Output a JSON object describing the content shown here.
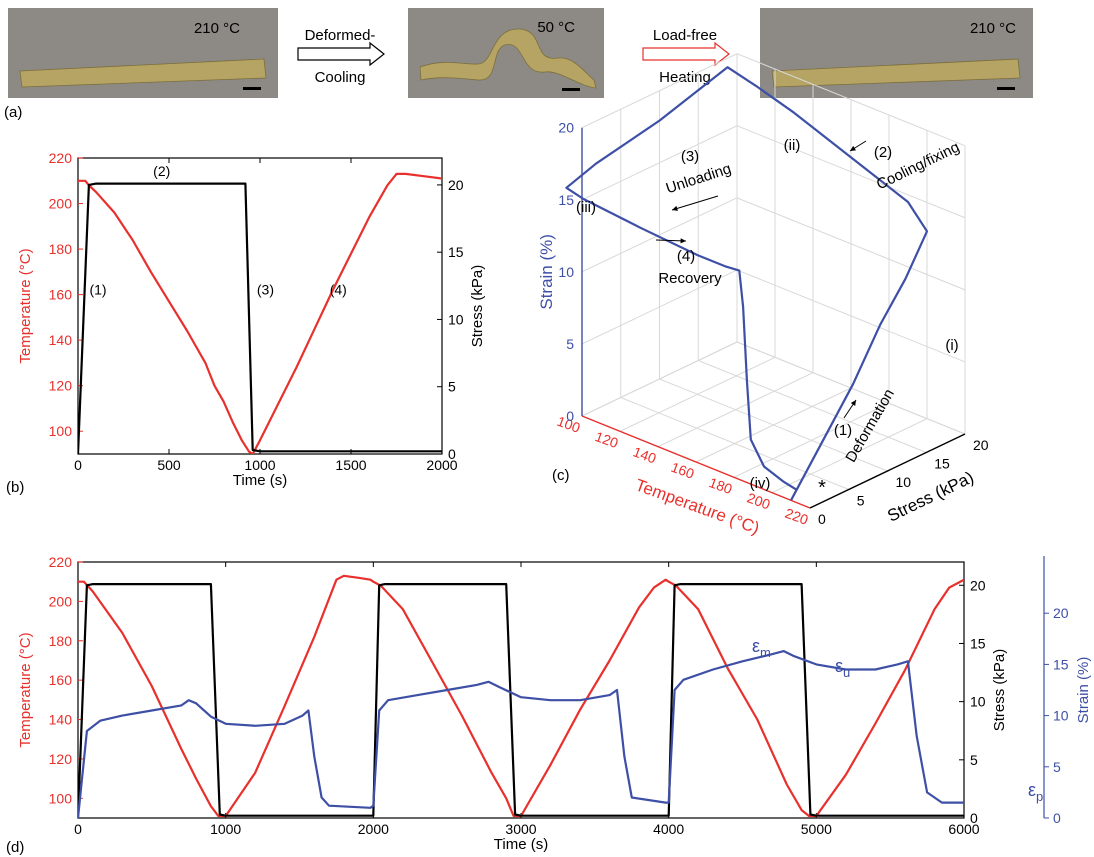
{
  "colors": {
    "temperature": "#e8302c",
    "stress": "#000000",
    "strain": "#3e4fa6",
    "photo_bg": "#8d8a85",
    "sample": "#b5a463",
    "arrow_red": "#e8302c"
  },
  "panel_a": {
    "label": "(a)",
    "photos": [
      {
        "temp": "210 °C",
        "shape": "flat"
      },
      {
        "temp": "50 °C",
        "shape": "twisted"
      },
      {
        "temp": "210 °C",
        "shape": "flat"
      }
    ],
    "arrows": [
      {
        "top": "Deformed-",
        "bottom": "Cooling",
        "style": "outline-black"
      },
      {
        "top": "Load-free",
        "bottom": "Heating",
        "style": "outline-red"
      }
    ]
  },
  "chart_data": [
    {
      "id": "b",
      "label": "(b)",
      "type": "line",
      "xlabel": "Time (s)",
      "ylabel_left": "Temperature (°C)",
      "ylabel_right": "Stress (kPa)",
      "xlim": [
        0,
        2000
      ],
      "ylim_left": [
        90,
        220
      ],
      "ylim_right": [
        0,
        22
      ],
      "xticks": [
        0,
        500,
        1000,
        1500,
        2000
      ],
      "yticks_left": [
        100,
        120,
        140,
        160,
        180,
        200,
        220
      ],
      "yticks_right": [
        0,
        5,
        10,
        15,
        20
      ],
      "series": [
        {
          "name": "",
          "axis": "left",
          "color": "temperature",
          "x": [
            0,
            40,
            60,
            100,
            200,
            300,
            400,
            500,
            600,
            700,
            750,
            800,
            850,
            900,
            940,
            960,
            1000,
            1100,
            1200,
            1300,
            1400,
            1500,
            1600,
            1700,
            1750,
            1800,
            1900,
            2000
          ],
          "y": [
            210,
            210,
            208,
            205,
            196,
            184,
            170,
            157,
            144,
            130,
            120,
            113,
            104,
            96,
            91,
            90,
            96,
            112,
            128,
            145,
            162,
            178,
            194,
            208,
            213,
            213,
            212,
            211
          ]
        },
        {
          "name": "",
          "axis": "right",
          "color": "stress",
          "x": [
            0,
            60,
            100,
            900,
            920,
            960,
            1000,
            2000
          ],
          "y": [
            0,
            20,
            20.1,
            20.1,
            20.1,
            0.3,
            0.2,
            0.2
          ]
        }
      ],
      "annotations": [
        {
          "text": "(1)",
          "x": 110,
          "y": 160
        },
        {
          "text": "(2)",
          "x": 460,
          "y": 212
        },
        {
          "text": "(3)",
          "x": 1030,
          "y": 160
        },
        {
          "text": "(4)",
          "x": 1430,
          "y": 160
        }
      ]
    },
    {
      "id": "c",
      "label": "(c)",
      "type": "line",
      "projection": "3d",
      "xlabel": "Temperature (°C)",
      "ylabel": "Stress (kPa)",
      "zlabel": "Strain (%)",
      "xlim": [
        100,
        220
      ],
      "ylim": [
        0,
        20
      ],
      "zlim": [
        0,
        20
      ],
      "xticks": [
        100,
        120,
        140,
        160,
        180,
        200,
        220
      ],
      "yticks": [
        0,
        5,
        10,
        15,
        20
      ],
      "zticks": [
        0,
        5,
        10,
        15,
        20
      ],
      "series": [
        {
          "name": "",
          "color": "strain",
          "temperature": [
            210,
            210,
            210,
            208,
            205,
            200,
            190,
            170,
            150,
            130,
            110,
            95,
            92,
            91,
            91,
            100,
            130,
            160,
            175,
            182,
            184,
            186,
            188,
            195,
            205,
            212
          ],
          "stress": [
            0,
            4,
            8,
            12,
            16,
            20,
            20,
            20,
            20,
            20,
            20,
            20,
            12,
            4,
            0.2,
            0.2,
            0.2,
            0.2,
            0.2,
            0.2,
            0.2,
            0.2,
            0.2,
            0.2,
            0.2,
            0.2
          ],
          "strain": [
            0,
            3,
            6,
            9,
            11,
            13,
            14.5,
            15.5,
            16.5,
            17.5,
            18.3,
            18.8,
            17,
            16,
            15.3,
            15,
            14.6,
            14.3,
            14.3,
            14.4,
            12,
            7,
            3,
            1.5,
            1,
            0.8
          ]
        }
      ],
      "annotations": [
        {
          "text": "(i)"
        },
        {
          "text": "(ii)"
        },
        {
          "text": "(iii)"
        },
        {
          "text": "(iv)"
        },
        {
          "text": "*"
        },
        {
          "text": "(1)"
        },
        {
          "text": "Deformation"
        },
        {
          "text": "(2)"
        },
        {
          "text": "Cooling/fixing"
        },
        {
          "text": "(3)"
        },
        {
          "text": "Unloading"
        },
        {
          "text": "(4)"
        },
        {
          "text": "Recovery"
        }
      ]
    },
    {
      "id": "d",
      "label": "(d)",
      "type": "line",
      "xlabel": "Time (s)",
      "ylabel_left": "Temperature (°C)",
      "ylabel_right": "Stress (kPa)",
      "ylabel_right2": "Strain (%)",
      "xlim": [
        0,
        6000
      ],
      "ylim_left": [
        90,
        220
      ],
      "ylim_right": [
        0,
        22
      ],
      "ylim_right2": [
        0,
        25
      ],
      "xticks": [
        0,
        1000,
        2000,
        3000,
        4000,
        5000,
        6000
      ],
      "yticks_left": [
        100,
        120,
        140,
        160,
        180,
        200,
        220
      ],
      "yticks_right": [
        0,
        5,
        10,
        15,
        20
      ],
      "yticks_right2": [
        0,
        5,
        10,
        15,
        20
      ],
      "series": [
        {
          "name": "",
          "axis": "left",
          "color": "temperature",
          "x": [
            0,
            40,
            100,
            300,
            500,
            700,
            800,
            900,
            950,
            1000,
            1200,
            1400,
            1600,
            1750,
            1800,
            1900,
            1980,
            2000,
            2050,
            2200,
            2400,
            2600,
            2800,
            2900,
            2950,
            3000,
            3200,
            3400,
            3600,
            3800,
            3900,
            3980,
            4000,
            4050,
            4200,
            4400,
            4600,
            4800,
            4900,
            4950,
            5000,
            5200,
            5400,
            5600,
            5800,
            5900,
            6000
          ],
          "y": [
            210,
            210,
            205,
            184,
            157,
            125,
            110,
            96,
            91,
            91,
            113,
            147,
            182,
            211,
            213,
            212,
            211,
            210,
            208,
            196,
            169,
            142,
            113,
            100,
            91,
            91,
            117,
            145,
            170,
            197,
            207,
            211,
            210,
            208,
            196,
            166,
            140,
            107,
            94,
            91,
            91,
            112,
            138,
            165,
            196,
            207,
            211
          ]
        },
        {
          "name": "",
          "axis": "right",
          "color": "stress",
          "x": [
            0,
            60,
            100,
            900,
            960,
            1000,
            2000,
            2040,
            2080,
            2900,
            2960,
            3000,
            4000,
            4040,
            4080,
            4900,
            4960,
            5000,
            6000
          ],
          "y": [
            0,
            20,
            20.1,
            20.1,
            0.3,
            0.2,
            0.2,
            20,
            20.1,
            20.1,
            0.3,
            0.2,
            0.2,
            20,
            20.1,
            20.1,
            0.3,
            0.2,
            0.2
          ]
        },
        {
          "name": "",
          "axis": "right2",
          "color": "strain",
          "x": [
            0,
            60,
            150,
            300,
            500,
            700,
            750,
            800,
            900,
            1000,
            1200,
            1400,
            1520,
            1560,
            1600,
            1650,
            1700,
            1980,
            2000,
            2040,
            2100,
            2300,
            2500,
            2700,
            2780,
            2850,
            3000,
            3200,
            3400,
            3600,
            3650,
            3700,
            3750,
            3980,
            4000,
            4040,
            4100,
            4300,
            4500,
            4700,
            4780,
            4850,
            5000,
            5200,
            5400,
            5550,
            5620,
            5680,
            5750,
            5850,
            6000
          ],
          "y": [
            0,
            8.5,
            9.5,
            10,
            10.5,
            11,
            11.5,
            11.2,
            9.9,
            9.2,
            9,
            9.2,
            10,
            10.5,
            6,
            2,
            1.2,
            1,
            1.2,
            10.5,
            11.5,
            12,
            12.5,
            13,
            13.3,
            12.8,
            11.8,
            11.5,
            11.5,
            12,
            12.5,
            6,
            2,
            1.5,
            1.5,
            12.5,
            13.5,
            14.5,
            15.3,
            16,
            16.3,
            15.8,
            15,
            14.5,
            14.5,
            15,
            15.3,
            8,
            2.5,
            1.5,
            1.5
          ]
        }
      ],
      "annotations": [
        {
          "text": "ε",
          "sub": "m"
        },
        {
          "text": "ε",
          "sub": "u"
        },
        {
          "text": "ε",
          "sub": "p"
        }
      ]
    }
  ]
}
